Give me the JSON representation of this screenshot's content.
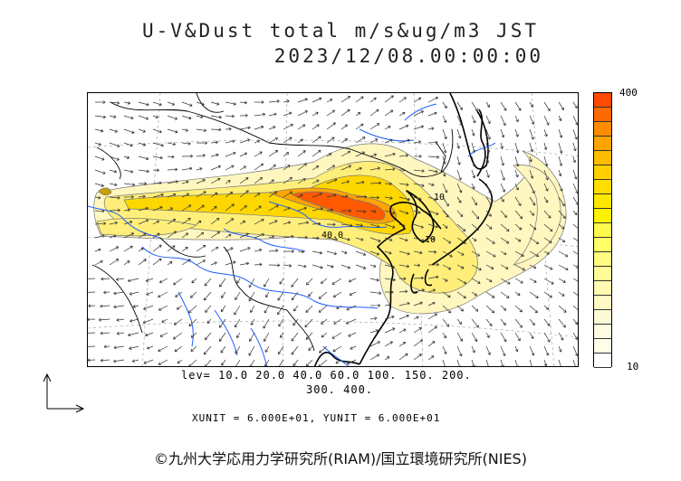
{
  "title": {
    "line1": "U-V&Dust total m/s&ug/m3 JST",
    "line2": "2023/12/08.00:00:00"
  },
  "colorbar": {
    "max_label": "400",
    "min_label": "10",
    "colors": [
      "#ff4a00",
      "#ff6a00",
      "#ff8c00",
      "#ffa400",
      "#ffbc00",
      "#ffcf00",
      "#ffdd00",
      "#ffe800",
      "#fff200",
      "#fff94d",
      "#ffff66",
      "#fffd80",
      "#fffb99",
      "#fffab3",
      "#fff9c4",
      "#fffad6",
      "#fffbe0",
      "#fffce8",
      "#ffffff"
    ]
  },
  "levels": {
    "line1": "lev= 10.0 20.0 40.0 60.0 100. 150. 200.",
    "line2": "300. 400."
  },
  "units": "XUNIT = 6.000E+01, YUNIT = 6.000E+01",
  "contour_labels": [
    "40.0",
    "10",
    "10"
  ],
  "copyright": "©九州大学応用力学研究所(RIAM)/国立環境研究所(NIES)",
  "colors": {
    "coast": "#000000",
    "river": "#1f5fff",
    "arrow": "#333333",
    "dust_light": "#fff6b8",
    "dust_mid": "#ffe040",
    "dust_high": "#ff6a00"
  }
}
